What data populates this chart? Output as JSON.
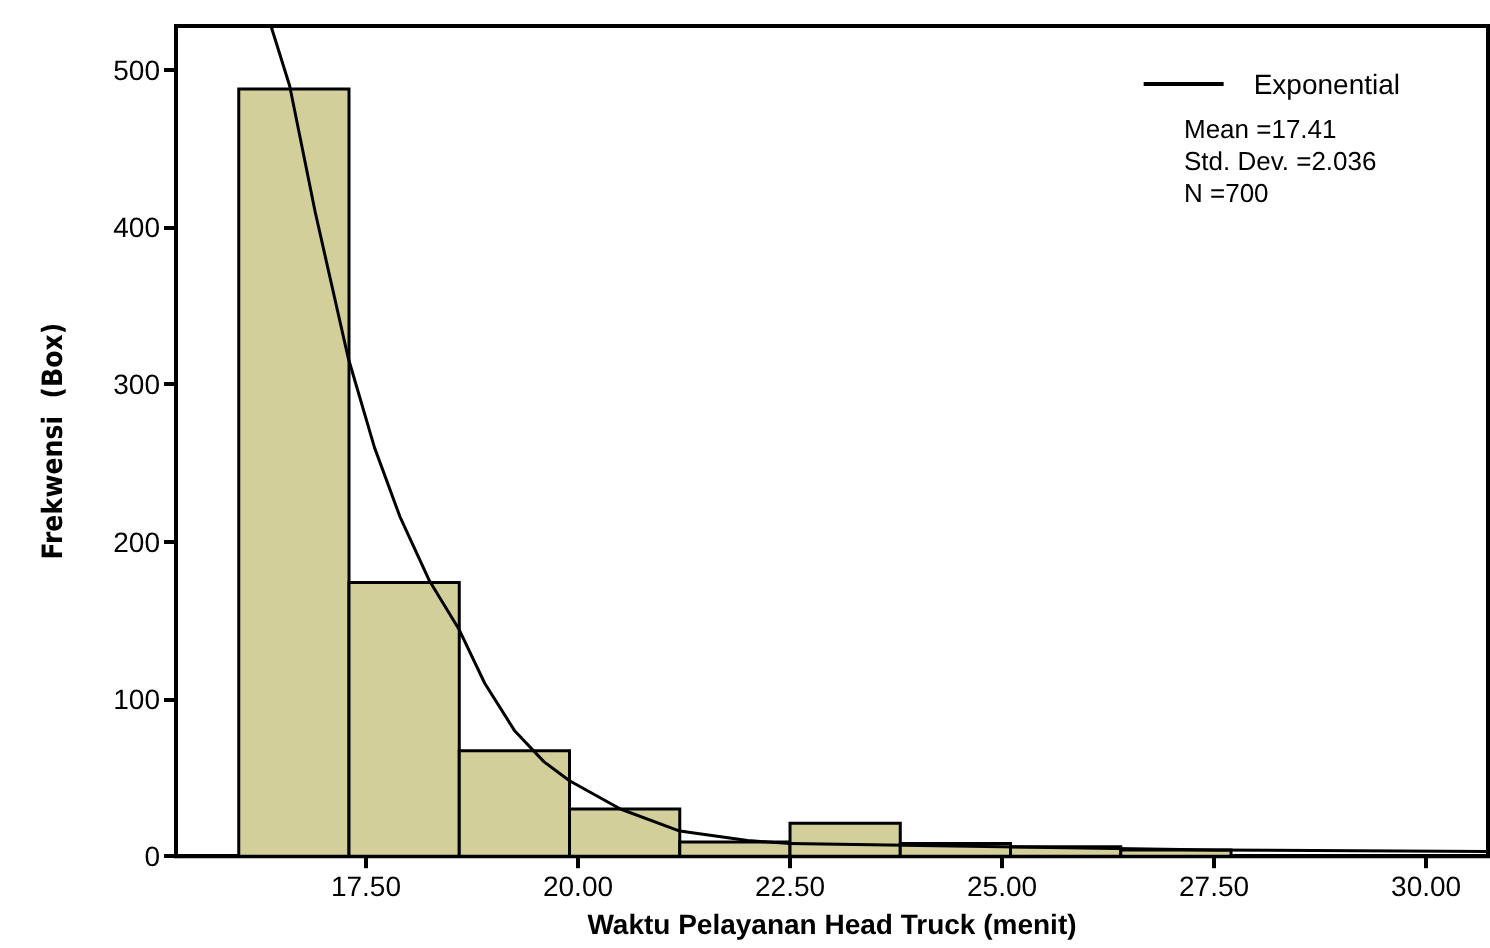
{
  "chart_data": {
    "type": "histogram",
    "xlabel": "Waktu Pelayanan Head Truck (menit)",
    "ylabel": "Frekwensi  (Box)",
    "series": [
      {
        "color": "#d3cf9a",
        "bins": [
          16.0,
          17.3,
          18.6,
          19.9,
          21.2,
          22.5,
          23.8,
          25.1,
          26.4,
          27.7
        ],
        "values": [
          488,
          174,
          67,
          30,
          9,
          21,
          8,
          6,
          4
        ]
      },
      {
        "type": "line",
        "name": "Exponential",
        "color": "#000000",
        "x": [
          16.38,
          16.6,
          16.9,
          17.29,
          17.6,
          17.9,
          18.25,
          18.6,
          18.9,
          19.25,
          19.6,
          19.9,
          20.5,
          21.2,
          22.0,
          22.5,
          25.0,
          27.5,
          30.73
        ],
        "values": [
          528,
          490,
          410,
          317,
          260,
          216,
          175,
          144,
          110,
          80,
          60,
          48,
          30,
          16,
          10,
          8,
          6,
          4,
          3
        ]
      }
    ],
    "annotations": [
      "Mean =17.41",
      "Std. Dev. =2.036",
      "N =700"
    ],
    "xlim": [
      15.26,
      30.73
    ],
    "xticks": [
      {
        "value": 17.5,
        "label": "17.50"
      },
      {
        "value": 20.0,
        "label": "20.00"
      },
      {
        "value": 22.5,
        "label": "22.50"
      },
      {
        "value": 25.0,
        "label": "25.00"
      },
      {
        "value": 27.5,
        "label": "27.50"
      },
      {
        "value": 30.0,
        "label": "30.00"
      }
    ],
    "ylim": [
      0,
      528
    ],
    "yticks": [
      0,
      100,
      200,
      300,
      400,
      500
    ],
    "legend": "top right",
    "marker": "none",
    "line_style": "solid",
    "grid": false
  }
}
